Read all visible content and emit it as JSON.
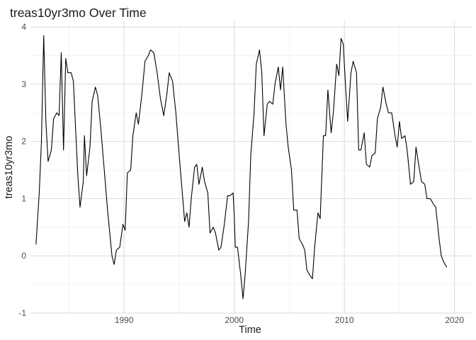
{
  "chart_data": {
    "type": "line",
    "title": "treas10yr3mo Over Time",
    "xlabel": "Time",
    "ylabel": "treas10yr3mo",
    "xlim": [
      1981.5,
      2021.5
    ],
    "ylim": [
      -1,
      4.1
    ],
    "x_ticks": [
      1990,
      2000,
      2010,
      2020
    ],
    "y_ticks": [
      -1,
      0,
      1,
      2,
      3,
      4
    ],
    "grid": true,
    "legend": "none",
    "series": [
      {
        "color": "#000000",
        "points": [
          [
            1982.0,
            0.2
          ],
          [
            1982.3,
            1.1
          ],
          [
            1982.5,
            2.0
          ],
          [
            1982.7,
            3.85
          ],
          [
            1982.9,
            2.35
          ],
          [
            1983.1,
            1.65
          ],
          [
            1983.4,
            1.85
          ],
          [
            1983.6,
            2.4
          ],
          [
            1983.9,
            2.5
          ],
          [
            1984.1,
            2.45
          ],
          [
            1984.3,
            3.55
          ],
          [
            1984.5,
            1.85
          ],
          [
            1984.7,
            3.45
          ],
          [
            1984.9,
            3.2
          ],
          [
            1985.2,
            3.2
          ],
          [
            1985.4,
            3.05
          ],
          [
            1985.6,
            2.2
          ],
          [
            1985.8,
            1.4
          ],
          [
            1986.0,
            0.85
          ],
          [
            1986.3,
            1.3
          ],
          [
            1986.4,
            2.1
          ],
          [
            1986.6,
            1.4
          ],
          [
            1986.9,
            1.9
          ],
          [
            1987.1,
            2.7
          ],
          [
            1987.4,
            2.95
          ],
          [
            1987.6,
            2.8
          ],
          [
            1987.9,
            2.2
          ],
          [
            1988.2,
            1.5
          ],
          [
            1988.5,
            0.8
          ],
          [
            1988.9,
            0.0
          ],
          [
            1989.1,
            -0.15
          ],
          [
            1989.3,
            0.1
          ],
          [
            1989.6,
            0.15
          ],
          [
            1989.9,
            0.55
          ],
          [
            1990.1,
            0.45
          ],
          [
            1990.3,
            1.45
          ],
          [
            1990.6,
            1.5
          ],
          [
            1990.8,
            2.1
          ],
          [
            1991.1,
            2.5
          ],
          [
            1991.3,
            2.3
          ],
          [
            1991.6,
            2.8
          ],
          [
            1991.9,
            3.4
          ],
          [
            1992.2,
            3.5
          ],
          [
            1992.4,
            3.6
          ],
          [
            1992.7,
            3.55
          ],
          [
            1993.0,
            3.2
          ],
          [
            1993.3,
            2.75
          ],
          [
            1993.6,
            2.45
          ],
          [
            1993.9,
            2.85
          ],
          [
            1994.1,
            3.2
          ],
          [
            1994.4,
            3.05
          ],
          [
            1994.7,
            2.5
          ],
          [
            1994.9,
            2.0
          ],
          [
            1995.2,
            1.3
          ],
          [
            1995.5,
            0.6
          ],
          [
            1995.7,
            0.75
          ],
          [
            1995.9,
            0.5
          ],
          [
            1996.1,
            1.0
          ],
          [
            1996.4,
            1.55
          ],
          [
            1996.6,
            1.6
          ],
          [
            1996.8,
            1.25
          ],
          [
            1997.1,
            1.55
          ],
          [
            1997.3,
            1.3
          ],
          [
            1997.6,
            1.1
          ],
          [
            1997.8,
            0.4
          ],
          [
            1998.1,
            0.5
          ],
          [
            1998.3,
            0.4
          ],
          [
            1998.6,
            0.1
          ],
          [
            1998.8,
            0.15
          ],
          [
            1999.1,
            0.55
          ],
          [
            1999.4,
            1.05
          ],
          [
            1999.6,
            1.05
          ],
          [
            1999.9,
            1.1
          ],
          [
            2000.0,
            0.7
          ],
          [
            2000.1,
            0.15
          ],
          [
            2000.3,
            0.15
          ],
          [
            2000.6,
            -0.35
          ],
          [
            2000.8,
            -0.75
          ],
          [
            2001.0,
            -0.3
          ],
          [
            2001.3,
            0.6
          ],
          [
            2001.5,
            1.75
          ],
          [
            2001.8,
            2.5
          ],
          [
            2002.0,
            3.35
          ],
          [
            2002.3,
            3.6
          ],
          [
            2002.5,
            3.2
          ],
          [
            2002.7,
            2.1
          ],
          [
            2003.0,
            2.65
          ],
          [
            2003.2,
            2.7
          ],
          [
            2003.5,
            2.65
          ],
          [
            2003.7,
            3.0
          ],
          [
            2004.0,
            3.3
          ],
          [
            2004.2,
            2.9
          ],
          [
            2004.4,
            3.3
          ],
          [
            2004.7,
            2.3
          ],
          [
            2004.9,
            1.9
          ],
          [
            2005.2,
            1.5
          ],
          [
            2005.4,
            0.8
          ],
          [
            2005.7,
            0.8
          ],
          [
            2005.9,
            0.3
          ],
          [
            2006.2,
            0.2
          ],
          [
            2006.4,
            0.1
          ],
          [
            2006.6,
            -0.25
          ],
          [
            2006.9,
            -0.35
          ],
          [
            2007.1,
            -0.4
          ],
          [
            2007.3,
            0.15
          ],
          [
            2007.6,
            0.75
          ],
          [
            2007.8,
            0.65
          ],
          [
            2008.1,
            2.1
          ],
          [
            2008.3,
            2.1
          ],
          [
            2008.5,
            2.9
          ],
          [
            2008.8,
            2.15
          ],
          [
            2009.0,
            2.5
          ],
          [
            2009.3,
            3.35
          ],
          [
            2009.5,
            3.15
          ],
          [
            2009.7,
            3.8
          ],
          [
            2009.9,
            3.7
          ],
          [
            2010.1,
            3.0
          ],
          [
            2010.3,
            2.35
          ],
          [
            2010.6,
            3.2
          ],
          [
            2010.8,
            3.4
          ],
          [
            2011.1,
            3.2
          ],
          [
            2011.3,
            1.85
          ],
          [
            2011.5,
            1.85
          ],
          [
            2011.8,
            2.15
          ],
          [
            2012.0,
            1.6
          ],
          [
            2012.3,
            1.55
          ],
          [
            2012.5,
            1.75
          ],
          [
            2012.8,
            1.8
          ],
          [
            2013.0,
            2.4
          ],
          [
            2013.3,
            2.6
          ],
          [
            2013.5,
            2.95
          ],
          [
            2013.8,
            2.65
          ],
          [
            2014.0,
            2.5
          ],
          [
            2014.3,
            2.5
          ],
          [
            2014.6,
            2.1
          ],
          [
            2014.8,
            1.9
          ],
          [
            2015.0,
            2.35
          ],
          [
            2015.2,
            2.05
          ],
          [
            2015.5,
            2.1
          ],
          [
            2015.7,
            1.85
          ],
          [
            2016.0,
            1.25
          ],
          [
            2016.3,
            1.3
          ],
          [
            2016.5,
            1.9
          ],
          [
            2016.7,
            1.65
          ],
          [
            2017.0,
            1.3
          ],
          [
            2017.3,
            1.25
          ],
          [
            2017.5,
            1.0
          ],
          [
            2017.8,
            1.0
          ],
          [
            2018.1,
            0.9
          ],
          [
            2018.3,
            0.85
          ],
          [
            2018.6,
            0.3
          ],
          [
            2018.8,
            0.0
          ],
          [
            2019.0,
            -0.1
          ],
          [
            2019.3,
            -0.2
          ]
        ]
      }
    ]
  }
}
